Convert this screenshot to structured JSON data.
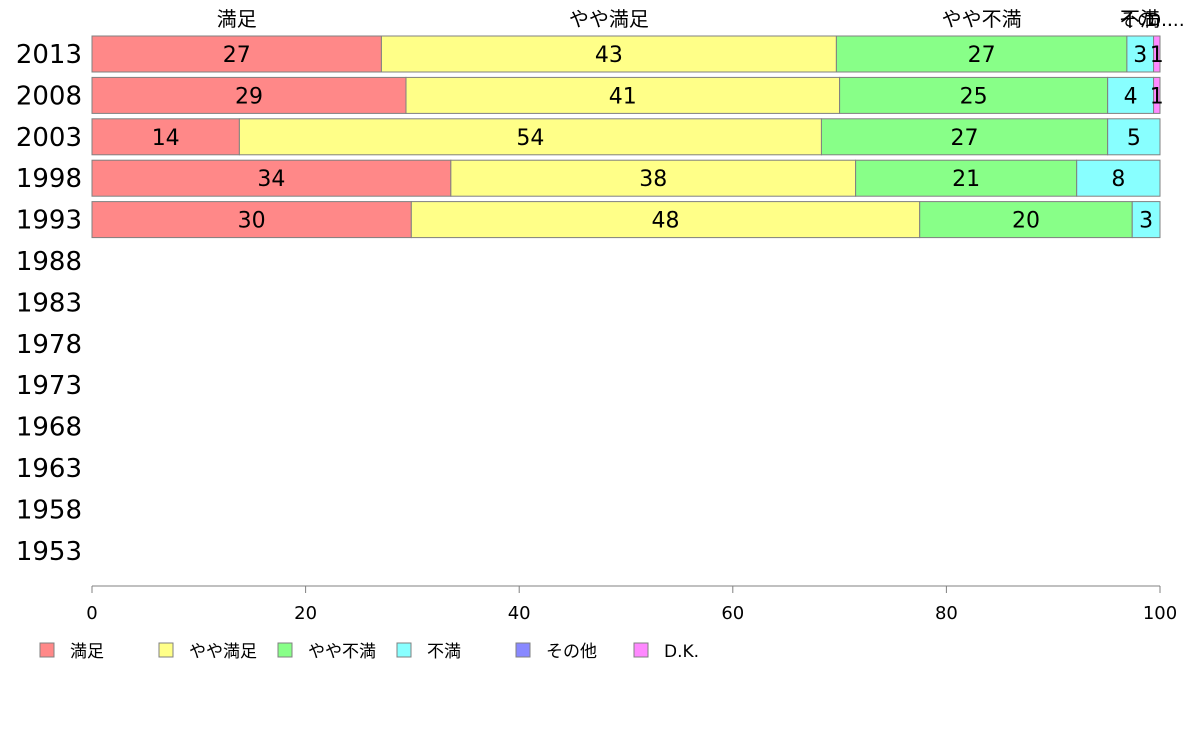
{
  "chart_data": {
    "type": "bar",
    "orientation": "horizontal",
    "stacked": true,
    "title": "",
    "xlabel": "",
    "ylabel": "",
    "xlim": [
      0,
      100
    ],
    "x_ticks": [
      "0",
      "20",
      "40",
      "60",
      "80",
      "100"
    ],
    "categories": [
      "2013",
      "2008",
      "2003",
      "1998",
      "1993",
      "1988",
      "1983",
      "1978",
      "1973",
      "1968",
      "1963",
      "1958",
      "1953"
    ],
    "series": [
      {
        "name": "満足",
        "color": "#ff8888",
        "values": [
          27.1,
          29.4,
          13.8,
          33.6,
          29.9,
          null,
          null,
          null,
          null,
          null,
          null,
          null,
          null
        ]
      },
      {
        "name": "やや満足",
        "color": "#ffff88",
        "values": [
          42.6,
          40.6,
          54.5,
          37.9,
          47.6,
          null,
          null,
          null,
          null,
          null,
          null,
          null,
          null
        ]
      },
      {
        "name": "やや不満",
        "color": "#88ff88",
        "values": [
          27.2,
          25.1,
          26.8,
          20.7,
          19.9,
          null,
          null,
          null,
          null,
          null,
          null,
          null,
          null
        ]
      },
      {
        "name": "不満",
        "color": "#88ffff",
        "values": [
          2.5,
          4.3,
          4.9,
          7.8,
          2.6,
          null,
          null,
          null,
          null,
          null,
          null,
          null,
          null
        ]
      },
      {
        "name": "その他",
        "color": "#8888ff",
        "values": [
          0,
          0,
          0,
          0,
          0,
          null,
          null,
          null,
          null,
          null,
          null,
          null,
          null
        ]
      },
      {
        "name": "D.K.",
        "color": "#ff88ff",
        "values": [
          0.6,
          0.6,
          0,
          0,
          0,
          null,
          null,
          null,
          null,
          null,
          null,
          null,
          null
        ]
      }
    ],
    "data_labels": [
      [
        "27",
        "43",
        "27",
        "3",
        "",
        "1"
      ],
      [
        "29",
        "41",
        "25",
        "4",
        "",
        "1"
      ],
      [
        "14",
        "54",
        "27",
        "5",
        "",
        ""
      ],
      [
        "34",
        "38",
        "21",
        "8",
        "",
        ""
      ],
      [
        "30",
        "48",
        "20",
        "3",
        "",
        ""
      ]
    ],
    "top_labels": [
      "満足",
      "やや満足",
      "やや不満",
      "不満",
      "その他",
      "D.K."
    ],
    "top_labels_display": [
      "満足",
      "やや満足",
      "やや不満",
      "不満",
      "その…",
      "D.…"
    ],
    "legend": {
      "placement": "bottom",
      "entries": [
        "満足",
        "やや満足",
        "やや不満",
        "不満",
        "その他",
        "D.K."
      ]
    },
    "grid": false
  }
}
